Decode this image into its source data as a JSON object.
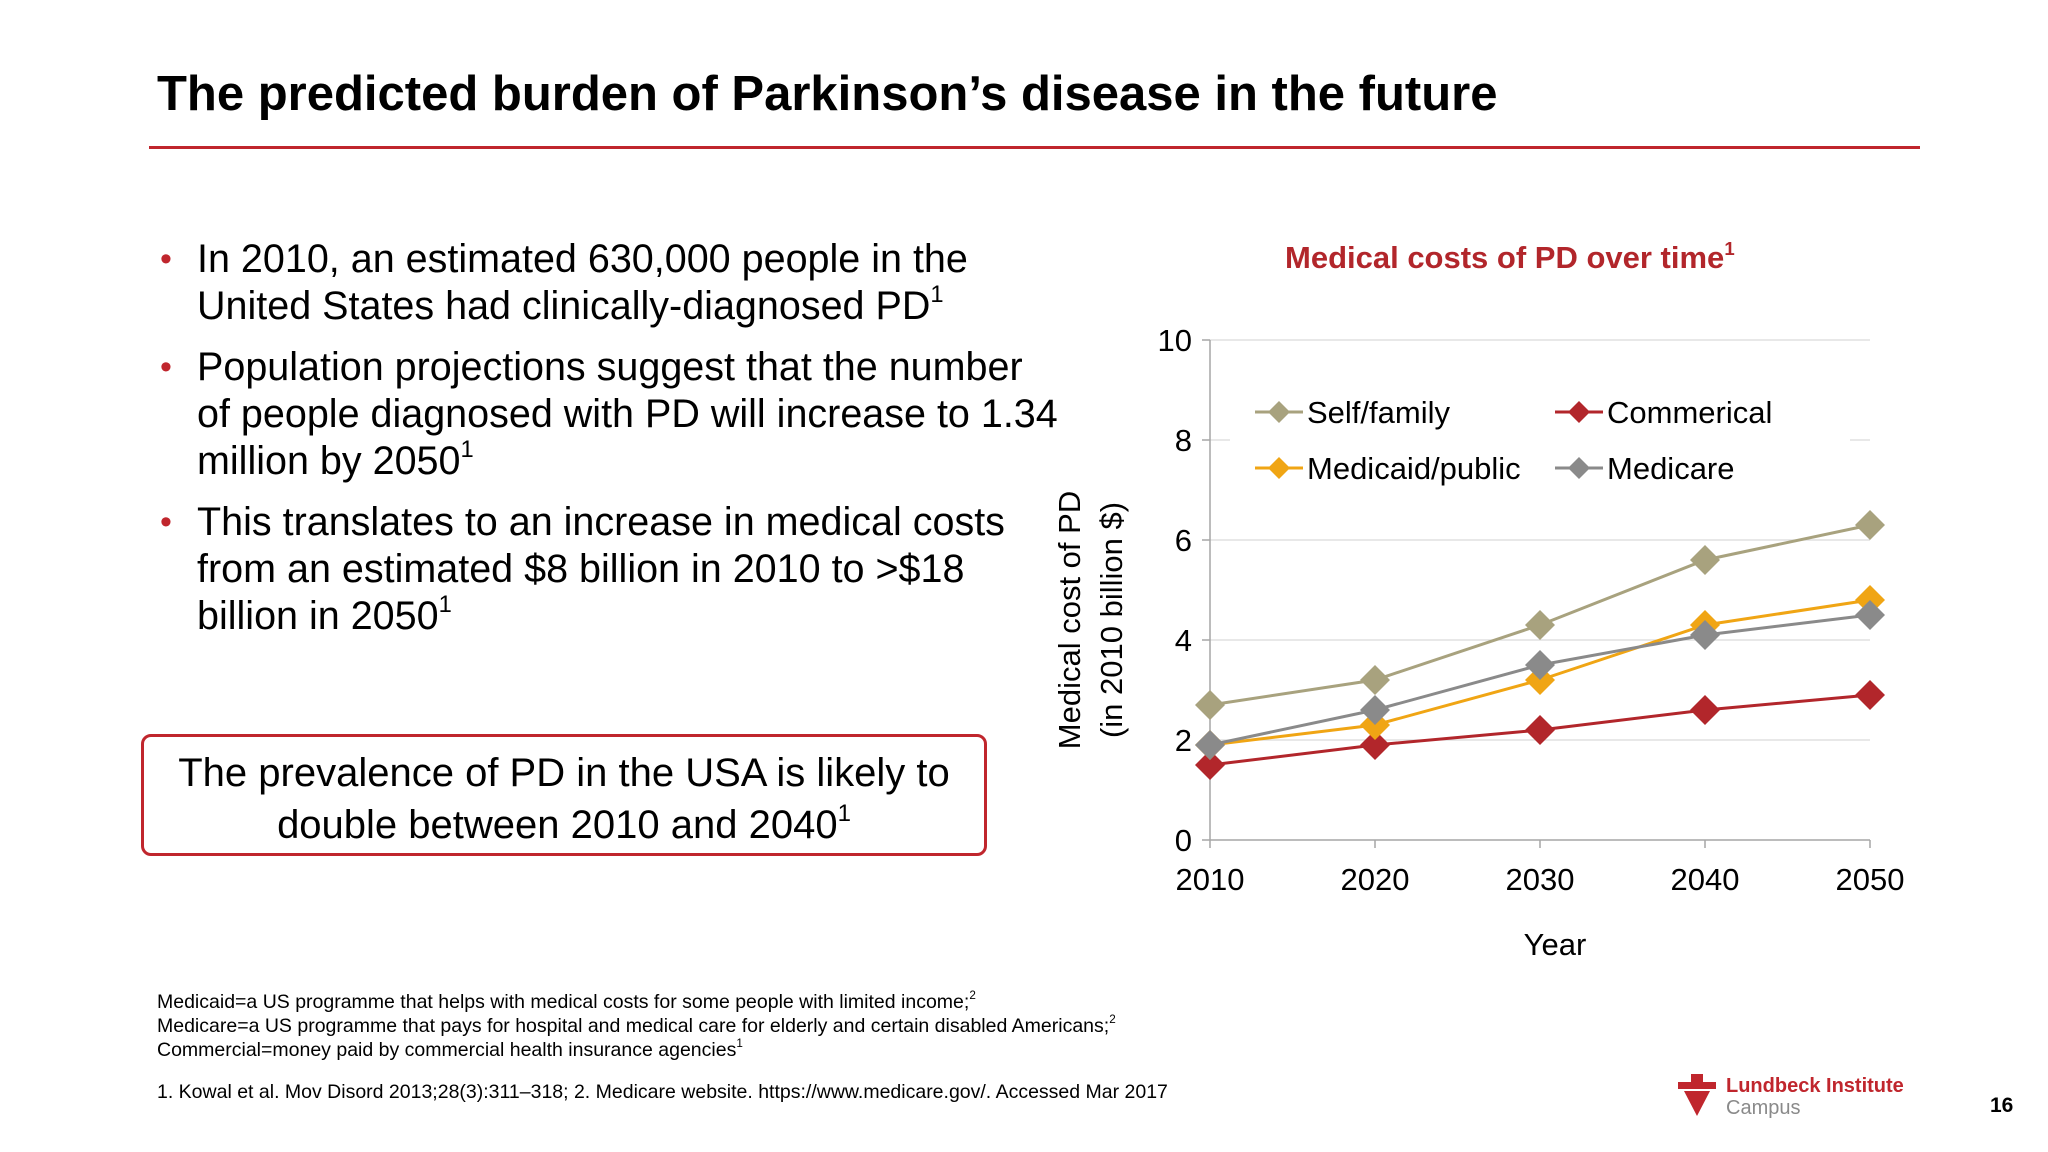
{
  "slide": {
    "title": "The predicted burden of Parkinson’s disease in the future",
    "bullets": [
      {
        "text": "In 2010, an estimated 630,000 people in the United States had clinically-diagnosed PD",
        "sup": "1"
      },
      {
        "text": "Population projections suggest that the number of people diagnosed with PD will increase to 1.34 million by 2050",
        "sup": "1"
      },
      {
        "text": "This translates to an increase in medical costs from an estimated $8 billion in 2010 to >$18 billion in 2050",
        "sup": "1"
      }
    ],
    "bullet_marker": "•",
    "callout": {
      "text": "The prevalence of PD in the USA is likely to double between 2010 and 2040",
      "sup": "1"
    },
    "footnotes": [
      {
        "text": "Medicaid=a US programme that helps with medical costs for some people with limited income;",
        "sup": "2"
      },
      {
        "text": "Medicare=a US programme that pays for hospital and medical care for elderly and certain disabled Americans;",
        "sup": "2"
      },
      {
        "text": "Commercial=money paid by commercial health insurance agencies",
        "sup": "1"
      }
    ],
    "reference": "1. Kowal et al. Mov Disord 2013;28(3):311–318; 2. Medicare website. https://www.medicare.gov/. Accessed Mar 2017",
    "page_number": "16",
    "logo": {
      "line1": "Lundbeck Institute",
      "line2": "Campus",
      "icon": "lundbeck-logo-icon"
    }
  },
  "chart_data": {
    "type": "line",
    "title": "Medical costs of PD over time",
    "title_sup": "1",
    "xlabel": "Year",
    "ylabel_lines": [
      "Medical cost of PD",
      "(in 2010 billion $)"
    ],
    "x": [
      "2010",
      "2020",
      "2030",
      "2040",
      "2050"
    ],
    "ylim": [
      0,
      10
    ],
    "yticks": [
      0,
      2,
      4,
      6,
      8,
      10
    ],
    "grid": true,
    "legend": "top-left",
    "series": [
      {
        "name": "Self/family",
        "color": "#a8a27e",
        "values": [
          2.7,
          3.2,
          4.3,
          5.6,
          6.3
        ]
      },
      {
        "name": "Commerical",
        "color": "#b2262b",
        "values": [
          1.5,
          1.9,
          2.2,
          2.6,
          2.9
        ]
      },
      {
        "name": "Medicaid/public",
        "color": "#f0a514",
        "values": [
          1.9,
          2.3,
          3.2,
          4.3,
          4.8
        ]
      },
      {
        "name": "Medicare",
        "color": "#8a8a8a",
        "values": [
          1.9,
          2.6,
          3.5,
          4.1,
          4.5
        ]
      }
    ]
  },
  "colors": {
    "accent": "#c0262d",
    "chart_title": "#b2262b"
  }
}
